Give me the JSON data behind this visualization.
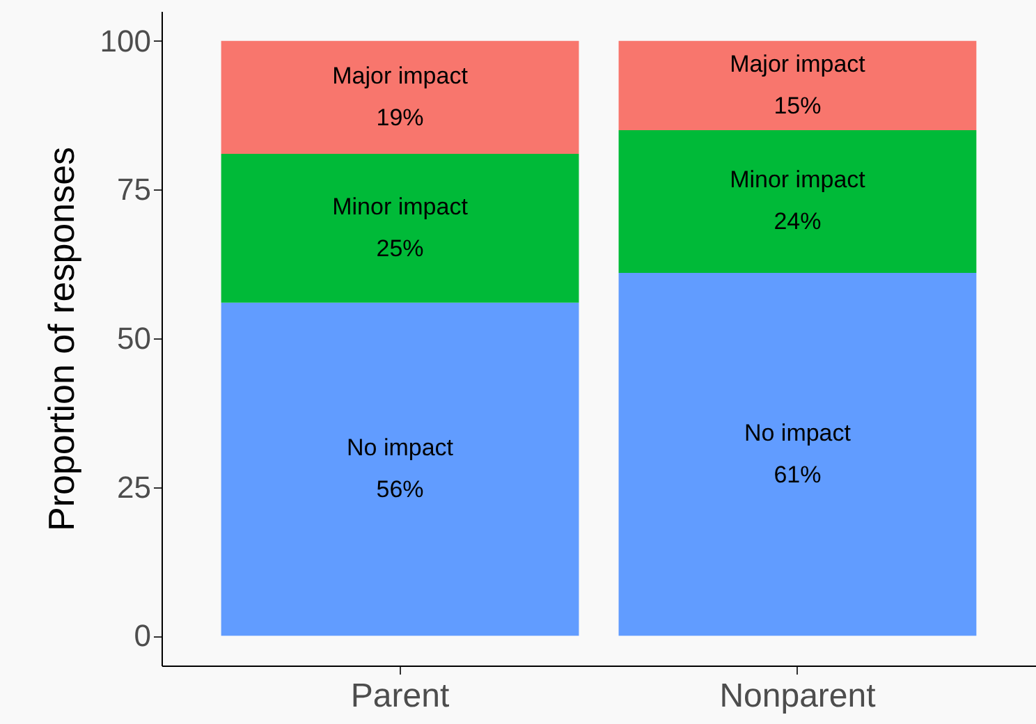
{
  "chart_data": {
    "type": "bar",
    "stacked": true,
    "ylabel": "Proportion of responses",
    "categories": [
      "Parent",
      "Nonparent"
    ],
    "series": [
      {
        "name": "No impact",
        "color": "#619cff",
        "values": [
          56,
          61
        ],
        "value_labels": [
          "56%",
          "61%"
        ]
      },
      {
        "name": "Minor impact",
        "color": "#00ba38",
        "values": [
          25,
          24
        ],
        "value_labels": [
          "25%",
          "24%"
        ]
      },
      {
        "name": "Major impact",
        "color": "#f8766d",
        "values": [
          19,
          15
        ],
        "value_labels": [
          "19%",
          "15%"
        ]
      }
    ],
    "ylim": [
      -5,
      105
    ],
    "yticks": [
      0,
      25,
      50,
      75,
      100
    ],
    "grid": false
  }
}
